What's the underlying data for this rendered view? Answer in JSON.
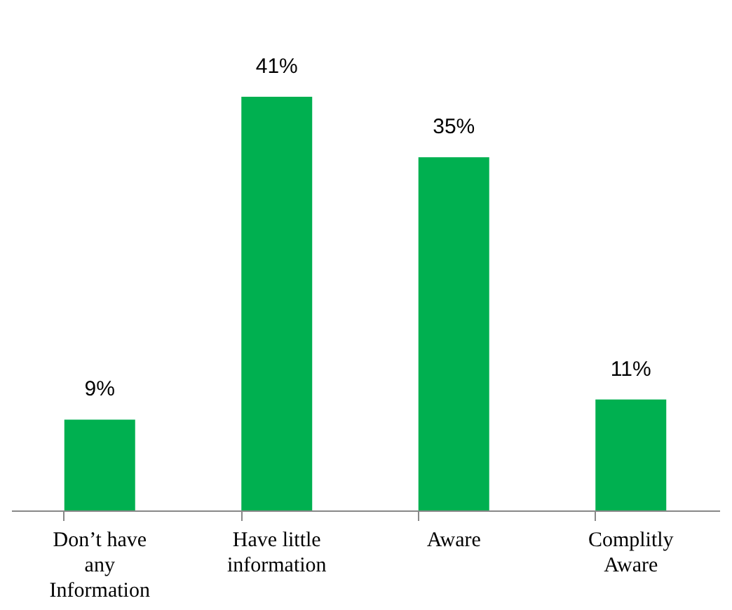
{
  "chart_data": {
    "type": "bar",
    "categories": [
      "Don’t have any Information",
      "Have little information",
      "Aware",
      "Complitly Aware"
    ],
    "values": [
      9,
      41,
      35,
      11
    ],
    "color": "#00b050",
    "value_labels": [
      "9%",
      "41%",
      "35%",
      "11%"
    ]
  }
}
